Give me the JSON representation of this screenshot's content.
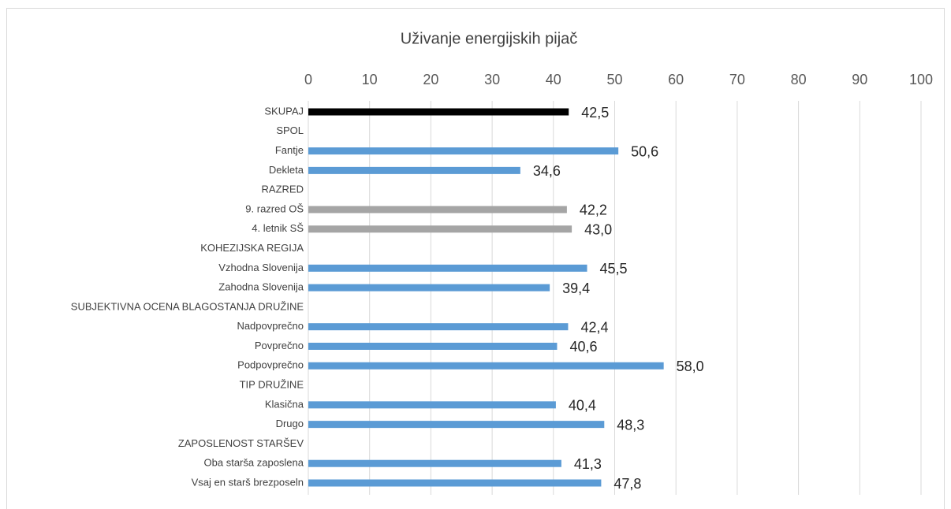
{
  "chart_data": {
    "type": "barh",
    "title": "Uživanje energijskih pijač",
    "categories": [
      "SKUPAJ",
      "SPOL",
      "Fantje",
      "Dekleta",
      "RAZRED",
      "9. razred OŠ",
      "4. letnik SŠ",
      "KOHEZIJSKA REGIJA",
      "Vzhodna Slovenija",
      "Zahodna Slovenija",
      "SUBJEKTIVNA OCENA BLAGOSTANJA DRUŽINE",
      "Nadpovprečno",
      "Povprečno",
      "Podpovprečno",
      "TIP DRUŽINE",
      "Klasična",
      "Drugo",
      "ZAPOSLENOST STARŠEV",
      "Oba starša zaposlena",
      "Vsaj en starš brezposeln"
    ],
    "values": [
      42.5,
      null,
      50.6,
      34.6,
      null,
      42.2,
      43.0,
      null,
      45.5,
      39.4,
      null,
      42.4,
      40.6,
      58.0,
      null,
      40.4,
      48.3,
      null,
      41.3,
      47.8
    ],
    "value_labels": [
      "42,5",
      null,
      "50,6",
      "34,6",
      null,
      "42,2",
      "43,0",
      null,
      "45,5",
      "39,4",
      null,
      "42,4",
      "40,6",
      "58,0",
      null,
      "40,4",
      "48,3",
      null,
      "41,3",
      "47,8"
    ],
    "colors": [
      "#000000",
      null,
      "#5b9bd5",
      "#5b9bd5",
      null,
      "#a5a5a5",
      "#a5a5a5",
      null,
      "#5b9bd5",
      "#5b9bd5",
      null,
      "#5b9bd5",
      "#5b9bd5",
      "#5b9bd5",
      null,
      "#5b9bd5",
      "#5b9bd5",
      null,
      "#5b9bd5",
      "#5b9bd5"
    ],
    "xlim": [
      0,
      100
    ],
    "xticks": [
      0,
      10,
      20,
      30,
      40,
      50,
      60,
      70,
      80,
      90,
      100
    ],
    "grid": true
  }
}
